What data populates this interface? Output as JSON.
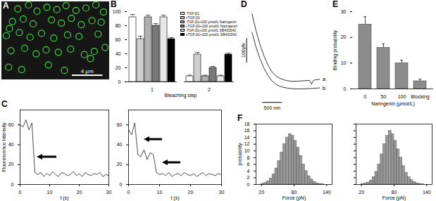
{
  "chart_data": [
    {
      "type": "scatter",
      "title": "A",
      "x": [
        1.0,
        2.1,
        3.5,
        4.6,
        5.9,
        7.2,
        8.4,
        9.7,
        11.0,
        12.3,
        13.3,
        1.4,
        2.8,
        4.1,
        6.5,
        7.8,
        9.1,
        10.4,
        11.8,
        13.0,
        0.6,
        2.3,
        3.7,
        5.2,
        6.8,
        8.6,
        10.1,
        12.6,
        1.2,
        3.0,
        4.5,
        5.8,
        7.4,
        9.0,
        10.8,
        12.1,
        13.5,
        0.9,
        2.6,
        6.1,
        8.2,
        11.6
      ],
      "y": [
        6.4,
        8.9,
        9.4,
        8.6,
        9.1,
        8.8,
        9.3,
        8.7,
        9.0,
        9.4,
        8.5,
        7.3,
        7.6,
        7.0,
        7.5,
        7.1,
        7.7,
        6.9,
        7.4,
        7.2,
        5.5,
        5.9,
        5.3,
        5.8,
        5.2,
        5.6,
        5.4,
        5.7,
        3.6,
        3.9,
        3.2,
        3.7,
        3.4,
        3.8,
        3.1,
        3.5,
        4.0,
        1.5,
        1.2,
        1.8,
        1.1,
        2.6
      ],
      "xlim": [
        0,
        14
      ],
      "ylim": [
        0,
        9.8
      ],
      "tick_labels": false,
      "marker": "circle",
      "color": "#3ddc3d",
      "scale_bars": [
        {
          "value": 4,
          "label": "4 μm",
          "axis": "x"
        }
      ]
    },
    {
      "type": "bar",
      "title": "B",
      "xlabel": "Bleaching step",
      "categories": [
        "1",
        "2"
      ],
      "ylim": [
        0,
        100
      ],
      "yticks": [
        0,
        20,
        40,
        60,
        80,
        100
      ],
      "legend": "top-right",
      "series": [
        {
          "name": "-TGF-β1",
          "color": "#ffffff",
          "values": [
            92,
            8
          ],
          "errors": [
            4,
            1.5
          ]
        },
        {
          "name": "+TGF-β1",
          "color": "#cfcfcf",
          "values": [
            61,
            39
          ],
          "errors": [
            4,
            3
          ]
        },
        {
          "name": "-TGF-β1+100 μmol/L Naringenin",
          "color": "#b0b0b0",
          "values": [
            92,
            8
          ],
          "errors": [
            3,
            1.5
          ]
        },
        {
          "name": "+TGF-β1+100 μmol/L Naringenin",
          "color": "#7a7a7a",
          "values": [
            80,
            20
          ],
          "errors": [
            3,
            2
          ]
        },
        {
          "name": "-TGF-β1+100 μmol/L SB431542",
          "color": "#e8e8e8",
          "values": [
            92,
            8
          ],
          "errors": [
            3,
            1.5
          ]
        },
        {
          "name": "+TGF-β1+100 μmol/L SB431542",
          "color": "#000000",
          "values": [
            61,
            39
          ],
          "errors": [
            2,
            2
          ]
        }
      ]
    },
    {
      "type": "line",
      "title": "C",
      "ylabel": "Fluorescence Intensity",
      "xlabel": "t (s)",
      "x": [
        0,
        1,
        2,
        3,
        4,
        5,
        6,
        7,
        8,
        9,
        10,
        11,
        12,
        13,
        14,
        15,
        16,
        17,
        18,
        19,
        20,
        21,
        22,
        23,
        24,
        25,
        26,
        27,
        28,
        29,
        30
      ],
      "values": [
        60,
        58,
        65,
        55,
        62,
        12,
        10,
        12,
        8,
        11,
        9,
        13,
        10,
        8,
        12,
        11,
        9,
        10,
        13,
        9,
        11,
        8,
        12,
        10,
        9,
        11,
        10,
        12,
        8,
        10,
        9
      ],
      "xlim": [
        0,
        30
      ],
      "xticks": [
        0,
        10,
        20,
        30
      ],
      "ylim": [
        0,
        75
      ],
      "yticks": [
        0,
        20,
        40,
        60
      ],
      "color": "#000000"
    },
    {
      "type": "line",
      "xlabel": "t (s)",
      "x": [
        0,
        1,
        2,
        3,
        4,
        5,
        6,
        7,
        8,
        9,
        10,
        11,
        12,
        13,
        14,
        15,
        16,
        17,
        18,
        19,
        20,
        21,
        22,
        23,
        24,
        25,
        26,
        27,
        28,
        29,
        30
      ],
      "values": [
        55,
        50,
        62,
        30,
        28,
        35,
        25,
        32,
        30,
        12,
        10,
        11,
        9,
        12,
        8,
        10,
        11,
        9,
        12,
        10,
        9,
        11,
        8,
        10,
        12,
        9,
        11,
        10,
        9,
        11,
        10
      ],
      "xlim": [
        0,
        30
      ],
      "xticks": [
        0,
        10,
        20,
        30
      ],
      "ylim": [
        0,
        75
      ],
      "yticks": [
        0,
        20,
        40,
        60
      ],
      "color": "#000000"
    },
    {
      "type": "line",
      "title": "D",
      "tick_labels": false,
      "x": [
        0,
        100,
        200,
        300,
        400,
        500,
        600,
        700,
        800,
        900,
        1000,
        1100,
        1200,
        1300,
        1400,
        1450,
        1500,
        1550,
        1600,
        1700
      ],
      "series": [
        {
          "name": "a",
          "color": "#000000",
          "values": [
            330,
            262,
            205,
            160,
            122,
            95,
            78,
            68,
            62,
            58,
            56,
            56,
            57,
            58,
            59,
            60,
            44,
            60,
            62,
            64
          ]
        },
        {
          "name": "b",
          "color": "#000000",
          "values": [
            255,
            195,
            148,
            110,
            80,
            58,
            44,
            36,
            31,
            28,
            26,
            25,
            25,
            25,
            26,
            26,
            27,
            27,
            28,
            29
          ]
        }
      ],
      "scale_bars": [
        {
          "value": 100,
          "label": "100pN",
          "axis": "y"
        },
        {
          "value": 500,
          "label": "500 nm",
          "axis": "x"
        }
      ]
    },
    {
      "type": "bar",
      "title": "E",
      "ylabel": "Binding probability",
      "xlabel": "Naringenin (μmol/L)",
      "categories": [
        "0",
        "50",
        "100",
        "Blocking"
      ],
      "values": [
        25,
        16,
        10,
        3
      ],
      "errors": [
        3,
        1.5,
        1.2,
        0.8
      ],
      "ylim": [
        0,
        30
      ],
      "yticks": [
        0,
        10,
        20,
        30
      ],
      "color": "#8c8c8c"
    },
    {
      "type": "histogram",
      "title": "F",
      "ylabel": "probability",
      "xlabel": "Force (pN)",
      "bins": [
        20,
        25,
        30,
        35,
        40,
        45,
        50,
        55,
        60,
        65,
        70,
        75,
        80,
        85,
        90,
        95,
        100,
        105,
        110,
        115,
        120,
        125,
        130,
        135,
        140
      ],
      "counts": [
        0.2,
        0.5,
        1,
        1.8,
        3,
        4.8,
        7,
        9.5,
        12,
        14,
        15,
        14.5,
        13,
        11,
        8.5,
        6,
        4,
        2.5,
        1.5,
        0.8,
        0.4,
        0.2,
        0.1,
        0
      ],
      "xlim": [
        10,
        150
      ],
      "xticks": [
        20,
        80,
        140
      ],
      "ylim": [
        0,
        18
      ],
      "yticks": [
        0,
        2,
        4,
        6,
        8,
        10,
        12,
        14,
        16,
        18
      ],
      "color": "#9a9a9a"
    },
    {
      "type": "histogram",
      "xlabel": "Force (pN)",
      "tick_labels": "x",
      "bins": [
        20,
        25,
        30,
        35,
        40,
        45,
        50,
        55,
        60,
        65,
        70,
        75,
        80,
        85,
        90,
        95,
        100,
        105,
        110,
        115,
        120,
        125,
        130,
        135,
        140
      ],
      "counts": [
        0.1,
        0.3,
        0.6,
        1.2,
        2.2,
        3.8,
        6,
        9,
        12,
        14.5,
        16,
        15,
        13,
        10.5,
        8,
        5.5,
        3.5,
        2.2,
        1.3,
        0.7,
        0.4,
        0.2,
        0.1,
        0
      ],
      "xlim": [
        10,
        150
      ],
      "xticks": [
        20,
        80,
        140
      ],
      "ylim": [
        0,
        18
      ],
      "yticks": [
        0,
        2,
        4,
        6,
        8,
        10,
        12,
        14,
        16,
        18
      ],
      "color": "#9a9a9a"
    }
  ]
}
